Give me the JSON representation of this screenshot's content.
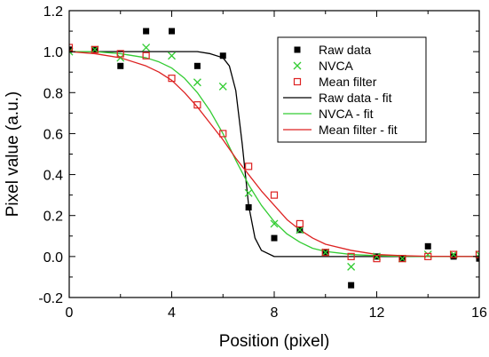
{
  "chart_data": {
    "type": "scatter",
    "xlabel": "Position (pixel)",
    "ylabel": "Pixel value (a.u.)",
    "xlim": [
      0,
      16
    ],
    "ylim": [
      -0.2,
      1.2
    ],
    "xticks": [
      0,
      4,
      8,
      12,
      16
    ],
    "xtick_labels": [
      "0",
      "4",
      "8",
      "12",
      "16"
    ],
    "yticks": [
      -0.2,
      0.0,
      0.2,
      0.4,
      0.6,
      0.8,
      1.0,
      1.2
    ],
    "ytick_labels": [
      "-0.2",
      "0.0",
      "0.2",
      "0.4",
      "0.6",
      "0.8",
      "1.0",
      "1.2"
    ],
    "grid": false,
    "legend_position": "top-right",
    "series": [
      {
        "name": "Raw data",
        "kind": "points",
        "marker": "filled-square",
        "color": "#000000",
        "x": [
          0,
          1,
          2,
          3,
          4,
          5,
          6,
          7,
          8,
          9,
          10,
          11,
          12,
          13,
          14,
          15,
          16
        ],
        "y": [
          1.01,
          1.01,
          0.93,
          1.1,
          1.1,
          0.93,
          0.98,
          0.24,
          0.09,
          0.13,
          0.02,
          -0.14,
          0.0,
          -0.01,
          0.05,
          0.0,
          -0.01
        ]
      },
      {
        "name": "NVCA",
        "kind": "points",
        "marker": "x",
        "color": "#33cc33",
        "x": [
          0,
          1,
          2,
          3,
          4,
          5,
          6,
          7,
          8,
          9,
          10,
          11,
          12,
          13,
          14,
          15,
          16
        ],
        "y": [
          1.0,
          1.01,
          0.97,
          1.02,
          0.98,
          0.85,
          0.83,
          0.31,
          0.16,
          0.13,
          0.02,
          -0.05,
          0.0,
          -0.01,
          0.01,
          0.01,
          0.01
        ]
      },
      {
        "name": "Mean filter",
        "kind": "points",
        "marker": "open-square",
        "color": "#dd2222",
        "x": [
          0,
          1,
          2,
          3,
          4,
          5,
          6,
          7,
          8,
          9,
          10,
          11,
          12,
          13,
          14,
          15,
          16
        ],
        "y": [
          1.02,
          1.01,
          0.99,
          0.98,
          0.87,
          0.74,
          0.6,
          0.44,
          0.3,
          0.16,
          0.02,
          0.0,
          -0.01,
          -0.01,
          0.0,
          0.01,
          0.01
        ]
      },
      {
        "name": "Raw data - fit",
        "kind": "line",
        "color": "#000000",
        "x": [
          0,
          1,
          2,
          3,
          4,
          5,
          5.5,
          6,
          6.25,
          6.5,
          6.75,
          7,
          7.25,
          7.5,
          8,
          9,
          10,
          12,
          14,
          16
        ],
        "y": [
          1.0,
          1.0,
          1.0,
          1.0,
          1.0,
          1.0,
          0.99,
          0.97,
          0.93,
          0.81,
          0.55,
          0.25,
          0.09,
          0.03,
          0.0,
          0.0,
          0.0,
          0.0,
          0.0,
          0.0
        ]
      },
      {
        "name": "NVCA - fit",
        "kind": "line",
        "color": "#33cc33",
        "x": [
          0,
          1,
          2,
          3,
          3.5,
          4,
          4.5,
          5,
          5.5,
          6,
          6.5,
          7,
          7.5,
          8,
          8.5,
          9,
          9.5,
          10,
          11,
          12,
          13,
          14,
          16
        ],
        "y": [
          1.0,
          1.0,
          0.99,
          0.97,
          0.95,
          0.92,
          0.87,
          0.8,
          0.71,
          0.6,
          0.47,
          0.35,
          0.25,
          0.17,
          0.11,
          0.07,
          0.04,
          0.025,
          0.01,
          0.004,
          0.001,
          0.0,
          0.0
        ]
      },
      {
        "name": "Mean filter - fit",
        "kind": "line",
        "color": "#dd2222",
        "x": [
          0,
          1,
          2,
          3,
          3.5,
          4,
          4.5,
          5,
          5.5,
          6,
          6.5,
          7,
          7.5,
          8,
          8.5,
          9,
          9.5,
          10,
          11,
          12,
          13,
          14,
          16
        ],
        "y": [
          1.0,
          0.99,
          0.97,
          0.93,
          0.9,
          0.86,
          0.8,
          0.73,
          0.65,
          0.57,
          0.48,
          0.4,
          0.32,
          0.25,
          0.18,
          0.13,
          0.09,
          0.06,
          0.03,
          0.01,
          0.004,
          0.001,
          0.0
        ]
      }
    ]
  }
}
